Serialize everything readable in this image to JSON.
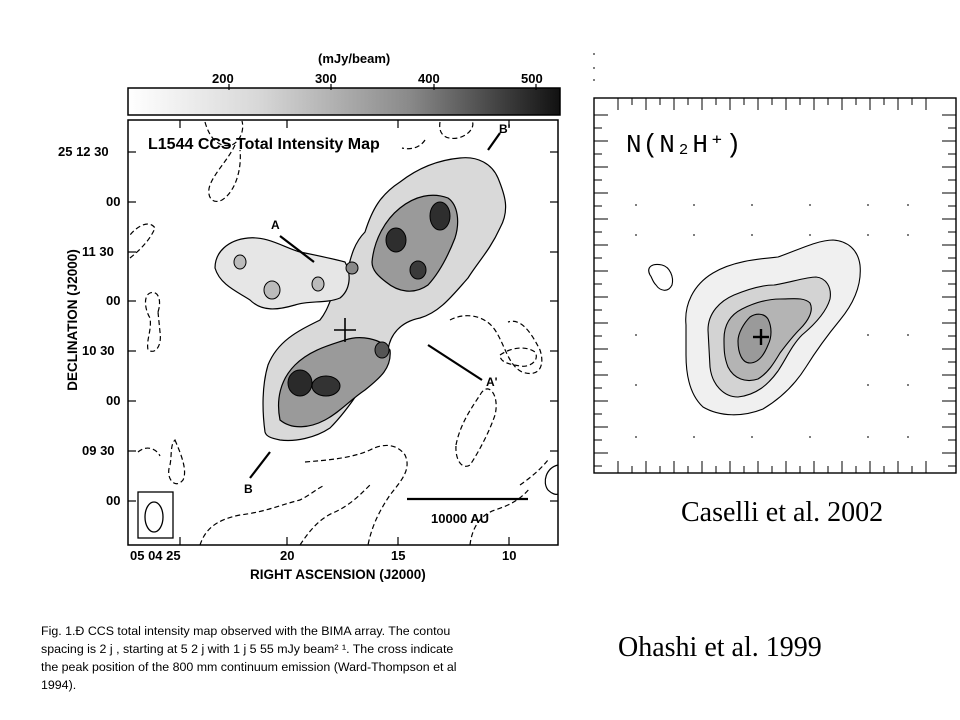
{
  "left_figure": {
    "colorbar": {
      "unit_label": "(mJy/beam)",
      "tick_labels": [
        "200",
        "300",
        "400",
        "500"
      ]
    },
    "map_title": "L1544 CCS Total Intensity Map",
    "y_axis_label": "DECLINATION (J2000)",
    "x_axis_label": "RIGHT ASCENSION (J2000)",
    "y_tick_labels": [
      "25 12 30",
      "00",
      "11 30",
      "00",
      "10 30",
      "00",
      "09 30",
      "00"
    ],
    "x_tick_labels": [
      "05 04 25",
      "20",
      "15",
      "10"
    ],
    "cut_labels": {
      "a": "A",
      "a_prime": "A'",
      "b": "B",
      "b_prime": "B'"
    },
    "scale_bar_label": "10000 AU"
  },
  "right_figure": {
    "molecule_label": "N(N₂H⁺)",
    "citation": "Caselli et al. 2002"
  },
  "left_citation": "Ohashi et al. 1999",
  "caption_lines": [
    "Fig. 1.Ð CCS total intensity map observed with the BIMA array. The contou",
    "spacing is 2 j , starting at 5  2 j  with 1 j  5  55 mJy beam² ¹. The cross indicate",
    "the peak position of the 800 mm continuum emission (Ward-Thompson et al",
    "1994)."
  ]
}
